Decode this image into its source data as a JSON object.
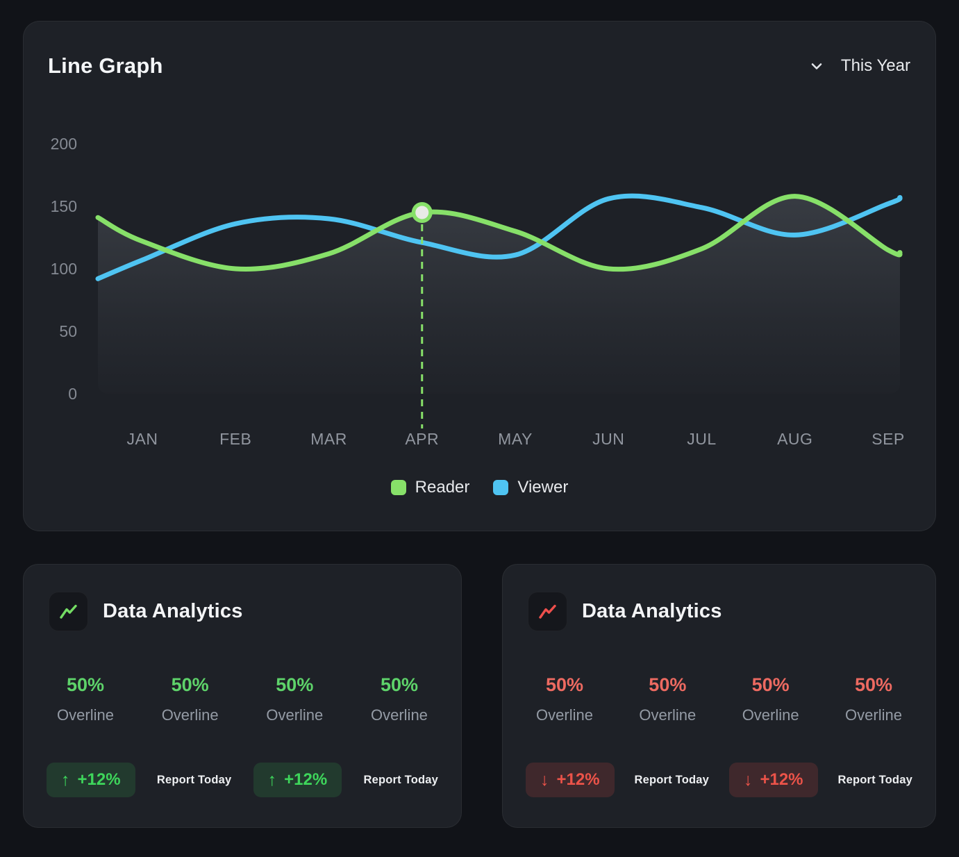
{
  "line_graph": {
    "title": "Line Graph",
    "period": "This Year"
  },
  "chart_data": {
    "type": "line",
    "title": "Line Graph",
    "categories": [
      "JAN",
      "FEB",
      "MAR",
      "APR",
      "MAY",
      "JUN",
      "JUL",
      "AUG",
      "SEP"
    ],
    "y_ticks": [
      200,
      150,
      100,
      50,
      0
    ],
    "ylim": [
      0,
      220
    ],
    "grid": false,
    "legend_position": "bottom",
    "series": [
      {
        "name": "Reader",
        "color": "#87e069",
        "area": true,
        "values": [
          122,
          100,
          112,
          145,
          130,
          100,
          116,
          158,
          115
        ],
        "edge_start": 141,
        "edge_end": 113
      },
      {
        "name": "Viewer",
        "color": "#4fc4f2",
        "area": false,
        "values": [
          107,
          136,
          140,
          121,
          111,
          156,
          149,
          127,
          152
        ],
        "edge_start": 92,
        "edge_end": 157
      }
    ],
    "highlight": {
      "series": "Reader",
      "category": "APR",
      "value": 145
    }
  },
  "analytics_cards": [
    {
      "title": "Data Analytics",
      "trend": "up",
      "accent": "#74dd64",
      "value_color": "#5ed36a",
      "badge_bg": "rgba(61,213,94,0.14)",
      "badge_fg": "#3ed65b",
      "stats": [
        {
          "value": "50%",
          "label": "Overline"
        },
        {
          "value": "50%",
          "label": "Overline"
        },
        {
          "value": "50%",
          "label": "Overline"
        },
        {
          "value": "50%",
          "label": "Overline"
        }
      ],
      "footer": [
        {
          "change": "+12%",
          "report": "Report Today"
        },
        {
          "change": "+12%",
          "report": "Report Today"
        }
      ]
    },
    {
      "title": "Data Analytics",
      "trend": "down",
      "accent": "#ee4f4c",
      "value_color": "#ed6a61",
      "badge_bg": "rgba(236,81,73,0.16)",
      "badge_fg": "#ec5349",
      "stats": [
        {
          "value": "50%",
          "label": "Overline"
        },
        {
          "value": "50%",
          "label": "Overline"
        },
        {
          "value": "50%",
          "label": "Overline"
        },
        {
          "value": "50%",
          "label": "Overline"
        }
      ],
      "footer": [
        {
          "change": "+12%",
          "report": "Report Today"
        },
        {
          "change": "+12%",
          "report": "Report Today"
        }
      ]
    }
  ]
}
